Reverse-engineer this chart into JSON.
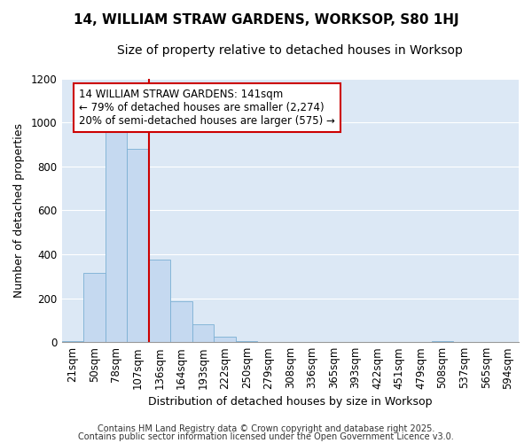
{
  "title1": "14, WILLIAM STRAW GARDENS, WORKSOP, S80 1HJ",
  "title2": "Size of property relative to detached houses in Worksop",
  "xlabel": "Distribution of detached houses by size in Worksop",
  "ylabel": "Number of detached properties",
  "categories": [
    "21sqm",
    "50sqm",
    "78sqm",
    "107sqm",
    "136sqm",
    "164sqm",
    "193sqm",
    "222sqm",
    "250sqm",
    "279sqm",
    "308sqm",
    "336sqm",
    "365sqm",
    "393sqm",
    "422sqm",
    "451sqm",
    "479sqm",
    "508sqm",
    "537sqm",
    "565sqm",
    "594sqm"
  ],
  "values": [
    5,
    315,
    1000,
    880,
    375,
    185,
    80,
    25,
    5,
    0,
    0,
    0,
    0,
    0,
    0,
    0,
    0,
    5,
    0,
    0,
    0
  ],
  "bar_color": "#c5d9f0",
  "bar_edge_color": "#7bafd4",
  "fig_background": "#ffffff",
  "plot_background": "#dce8f5",
  "grid_color": "#ffffff",
  "vline_color": "#cc0000",
  "vline_x": 4,
  "annotation_text": "14 WILLIAM STRAW GARDENS: 141sqm\n← 79% of detached houses are smaller (2,274)\n20% of semi-detached houses are larger (575) →",
  "annotation_box_edgecolor": "#cc0000",
  "ylim": [
    0,
    1200
  ],
  "yticks": [
    0,
    200,
    400,
    600,
    800,
    1000,
    1200
  ],
  "footnote1": "Contains HM Land Registry data © Crown copyright and database right 2025.",
  "footnote2": "Contains public sector information licensed under the Open Government Licence v3.0.",
  "title1_fontsize": 11,
  "title2_fontsize": 10,
  "axis_fontsize": 9,
  "tick_fontsize": 8.5,
  "annot_fontsize": 8.5,
  "footnote_fontsize": 7
}
